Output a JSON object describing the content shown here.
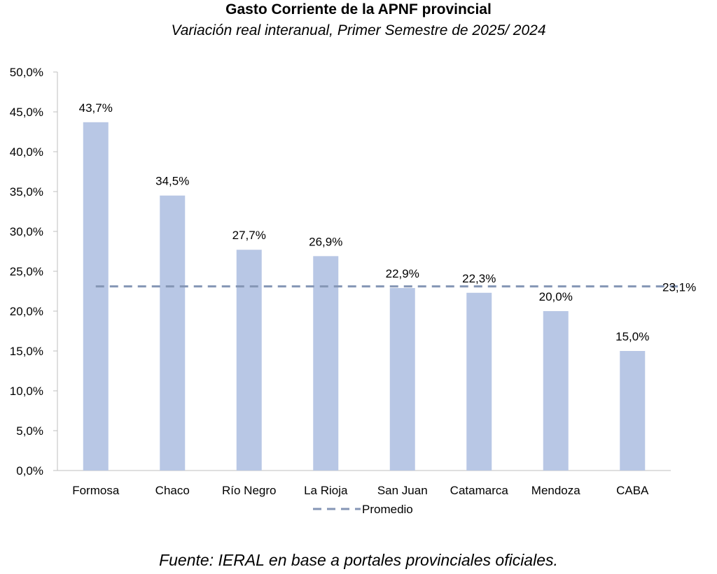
{
  "chart_data": {
    "type": "bar",
    "title": "Gasto Corriente de la APNF provincial",
    "subtitle": "Variación real interanual, Primer Semestre de 2025/ 2024",
    "categories": [
      "Formosa",
      "Chaco",
      "Río Negro",
      "La Rioja",
      "San Juan",
      "Catamarca",
      "Mendoza",
      "CABA"
    ],
    "values": [
      43.7,
      34.5,
      27.7,
      26.9,
      22.9,
      22.3,
      20.0,
      15.0
    ],
    "value_labels": [
      "43,7%",
      "34,5%",
      "27,7%",
      "26,9%",
      "22,9%",
      "22,3%",
      "20,0%",
      "15,0%"
    ],
    "average": {
      "name": "Promedio",
      "value": 23.1,
      "label": "23,1%"
    },
    "ylim": [
      0,
      50
    ],
    "yticks": [
      0,
      5,
      10,
      15,
      20,
      25,
      30,
      35,
      40,
      45,
      50
    ],
    "ytick_labels": [
      "0,0%",
      "5,0%",
      "10,0%",
      "15,0%",
      "20,0%",
      "25,0%",
      "30,0%",
      "35,0%",
      "40,0%",
      "45,0%",
      "50,0%"
    ],
    "bar_color": "#b8c7e5",
    "average_color": "#8596b5",
    "legend": "bottom",
    "grid": false
  },
  "source": "Fuente: IERAL en base a portales provinciales oficiales."
}
